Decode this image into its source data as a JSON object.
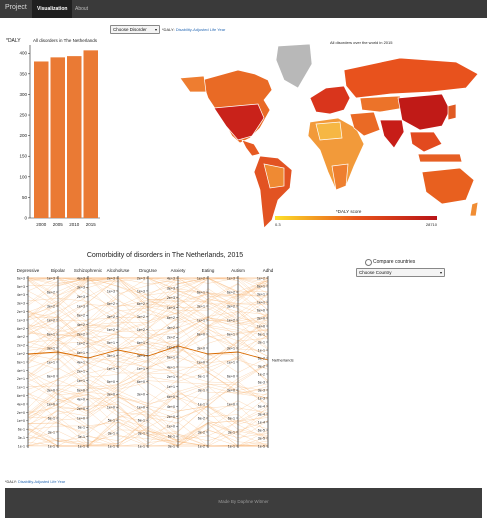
{
  "nav": {
    "brand": "Project",
    "items": [
      "Visualization",
      "About"
    ],
    "active": 0
  },
  "disorder_select": {
    "value": "Choose Disorder"
  },
  "daly_note": {
    "term": "*DALY:",
    "definition": "Disability-Adjusted Life Year"
  },
  "bar_chart": {
    "ylabel": "*DALY"
  },
  "map": {
    "title": "All disorders over the world in 2015",
    "legend_title": "*DALY score",
    "legend_min": "0.3",
    "legend_max": "28710",
    "colors": {
      "low": "#fde12a",
      "mid": "#e8541a",
      "high": "#b81418",
      "nodata": "#b8b8b8",
      "ocean": "#ffffff"
    }
  },
  "comorbidity": {
    "title": "Comorbidity of disorders in The Netherlands, 2015",
    "highlight_label": "Netherlands",
    "line_color": "#f7b776",
    "highlight_color": "#d96b00",
    "axes": [
      {
        "name": "Depressive",
        "ticks": [
          "6e+3",
          "5e+3",
          "4e+3",
          "3e+3",
          "2e+3",
          "1e+3",
          "6e+2",
          "4e+2",
          "2e+2",
          "1e+2",
          "6e+1",
          "4e+1",
          "2e+1",
          "1e+1",
          "6e+0",
          "4e+0",
          "2e+0",
          "1e+0",
          "6e-1",
          "3e-1",
          "1e-1"
        ]
      },
      {
        "name": "Bipolar",
        "ticks": [
          "1e+3",
          "6e+2",
          "3e+2",
          "1e+2",
          "6e+1",
          "3e+1",
          "1e+1",
          "6e+0",
          "3e+0",
          "1e+0",
          "6e-1",
          "3e-1",
          "1e-1"
        ]
      },
      {
        "name": "Schizophrenic",
        "ticks": [
          "4e+3",
          "3e+3",
          "2e+3",
          "1e+3",
          "6e+2",
          "4e+2",
          "2e+2",
          "1e+2",
          "6e+1",
          "4e+1",
          "2e+1",
          "1e+1",
          "6e+0",
          "4e+0",
          "2e+0",
          "1e+0",
          "6e-1",
          "3e-1",
          "1e-1"
        ]
      },
      {
        "name": "AlcoholUse",
        "ticks": [
          "2e+3",
          "1e+3",
          "5e+2",
          "3e+2",
          "1e+2",
          "5e+1",
          "3e+1",
          "1e+1",
          "5e+0",
          "3e+0",
          "1e+0",
          "5e-1",
          "3e-1",
          "1e-1"
        ]
      },
      {
        "name": "DrugUse",
        "ticks": [
          "2e+3",
          "1e+3",
          "6e+2",
          "3e+2",
          "1e+2",
          "6e+1",
          "3e+1",
          "1e+1",
          "6e+0",
          "3e+0",
          "1e+0",
          "6e-1",
          "3e-1",
          "1e-1"
        ]
      },
      {
        "name": "Anxiety",
        "ticks": [
          "4e+3",
          "3e+3",
          "2e+3",
          "1e+3",
          "6e+2",
          "4e+2",
          "2e+2",
          "1e+2",
          "6e+1",
          "4e+1",
          "2e+1",
          "1e+1",
          "6e+0",
          "4e+0",
          "2e+0",
          "1e+0",
          "6e-1",
          "3e-1"
        ]
      },
      {
        "name": "Eating",
        "ticks": [
          "1e+2",
          "6e+1",
          "3e+1",
          "1e+1",
          "6e+0",
          "3e+0",
          "1e+0",
          "6e-1",
          "3e-1",
          "1e-1",
          "6e-2",
          "3e-2",
          "1e-2"
        ]
      },
      {
        "name": "Autism",
        "ticks": [
          "1e+3",
          "6e+2",
          "3e+2",
          "1e+2",
          "6e+1",
          "3e+1",
          "1e+1",
          "6e+0",
          "3e+0",
          "1e+0",
          "6e-1",
          "3e-1",
          "1e-1"
        ]
      },
      {
        "name": "Adhd",
        "ticks": [
          "1e+2",
          "6e+1",
          "3e+1",
          "1e+1",
          "6e+0",
          "3e+0",
          "1e+0",
          "6e-1",
          "3e-1",
          "1e-1",
          "6e-2",
          "3e-2",
          "1e-2",
          "6e-3",
          "3e-3",
          "1e-3",
          "6e-4",
          "3e-4",
          "1e-4",
          "6e-5",
          "3e-5",
          "1e-5"
        ]
      }
    ]
  },
  "compare": {
    "label": "Compare countries",
    "select_value": "Choose Country"
  },
  "footer": {
    "text": "Made By Daphne Witmer"
  },
  "chart_data": {
    "type": "bar",
    "title": "All disorders in The Netherlands",
    "xlabel": "",
    "ylabel": "*DALY",
    "categories": [
      "2000",
      "2005",
      "2010",
      "2015"
    ],
    "values": [
      380,
      390,
      393,
      407
    ],
    "ylim": [
      0,
      420
    ],
    "yticks": [
      0,
      50,
      100,
      150,
      200,
      250,
      300,
      350,
      400
    ],
    "color": "#ea7a34"
  }
}
